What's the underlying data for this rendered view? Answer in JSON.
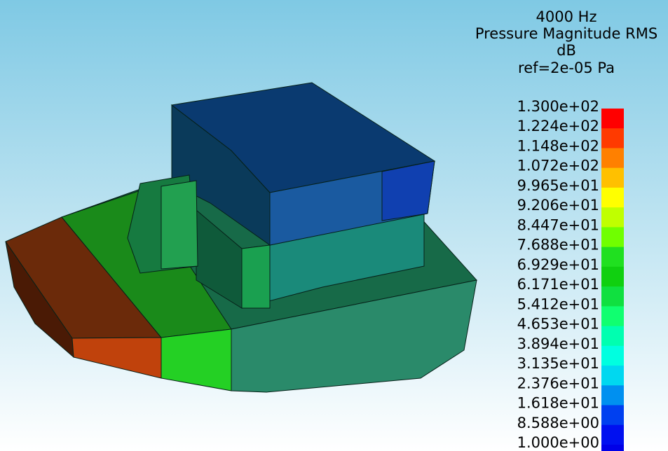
{
  "legend": {
    "title": [
      "4000 Hz",
      "Pressure Magnitude RMS",
      "dB",
      "ref=2e-05 Pa"
    ],
    "labels": [
      "1.300e+02",
      "1.224e+02",
      "1.148e+02",
      "1.072e+02",
      "9.965e+01",
      "9.206e+01",
      "8.447e+01",
      "7.688e+01",
      "6.929e+01",
      "6.171e+01",
      "5.412e+01",
      "4.653e+01",
      "3.894e+01",
      "3.135e+01",
      "2.376e+01",
      "1.618e+01",
      "8.588e+00",
      "1.000e+00"
    ]
  }
}
